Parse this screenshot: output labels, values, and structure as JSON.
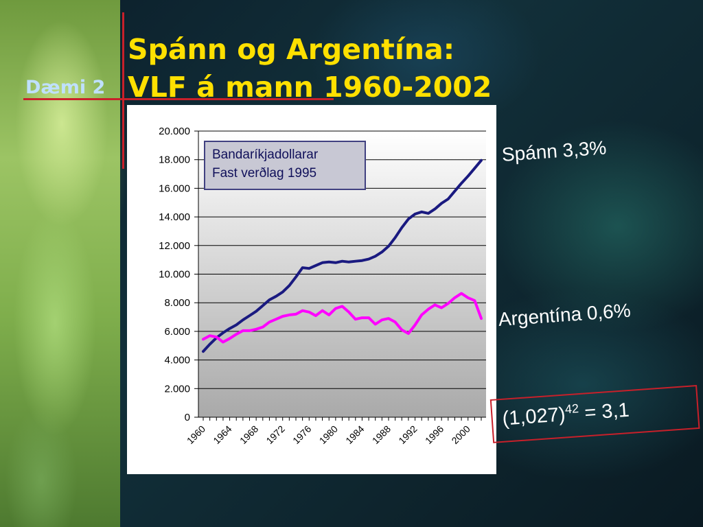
{
  "slide": {
    "example_label": "Dæmi 2",
    "title_line1": "Spánn og Argentína:",
    "title_line2": "VLF á mann 1960-2002",
    "spain_annotation": "Spánn 3,3%",
    "argentina_annotation": "Argentína 0,6%",
    "formula_base": "(1,027)",
    "formula_exponent": "42",
    "formula_result": " = 3,1"
  },
  "colors": {
    "title": "#ffe000",
    "example_label": "#bfe0ff",
    "accent_red": "#c8202a",
    "spain_series": "#1a1a80",
    "argentina_series": "#ff00ff"
  },
  "chart_data": {
    "type": "line",
    "title": "",
    "xlabel": "",
    "ylabel": "",
    "ylim": [
      0,
      20000
    ],
    "yticks": [
      0,
      2000,
      4000,
      6000,
      8000,
      10000,
      12000,
      14000,
      16000,
      18000,
      20000
    ],
    "ytick_labels": [
      "0",
      "2.000",
      "4.000",
      "6.000",
      "8.000",
      "10.000",
      "12.000",
      "14.000",
      "16.000",
      "18.000",
      "20.000"
    ],
    "xtick_labels": [
      "1960",
      "1964",
      "1968",
      "1972",
      "1976",
      "1980",
      "1984",
      "1988",
      "1992",
      "1996",
      "2000"
    ],
    "grid": true,
    "legend_box": [
      "Bandaríkjadollarar",
      "Fast verðlag 1995"
    ],
    "x": [
      1960,
      1961,
      1962,
      1963,
      1964,
      1965,
      1966,
      1967,
      1968,
      1969,
      1970,
      1971,
      1972,
      1973,
      1974,
      1975,
      1976,
      1977,
      1978,
      1979,
      1980,
      1981,
      1982,
      1983,
      1984,
      1985,
      1986,
      1987,
      1988,
      1989,
      1990,
      1991,
      1992,
      1993,
      1994,
      1995,
      1996,
      1997,
      1998,
      1999,
      2000,
      2001,
      2002
    ],
    "series": [
      {
        "name": "Spánn",
        "values": [
          4600,
          5100,
          5550,
          5900,
          6200,
          6450,
          6800,
          7100,
          7400,
          7800,
          8200,
          8450,
          8750,
          9200,
          9800,
          10450,
          10400,
          10600,
          10800,
          10850,
          10800,
          10900,
          10850,
          10900,
          10950,
          11050,
          11250,
          11550,
          11950,
          12550,
          13250,
          13850,
          14200,
          14350,
          14250,
          14550,
          14950,
          15250,
          15800,
          16350,
          16850,
          17400,
          17950
        ]
      },
      {
        "name": "Argentína",
        "values": [
          5450,
          5700,
          5600,
          5250,
          5500,
          5800,
          6050,
          6050,
          6150,
          6300,
          6650,
          6850,
          7050,
          7150,
          7200,
          7450,
          7350,
          7100,
          7450,
          7150,
          7600,
          7750,
          7350,
          6850,
          6950,
          6950,
          6500,
          6800,
          6900,
          6650,
          6100,
          5850,
          6450,
          7150,
          7550,
          7850,
          7650,
          7950,
          8350,
          8650,
          8350,
          8150,
          6900
        ]
      }
    ]
  }
}
